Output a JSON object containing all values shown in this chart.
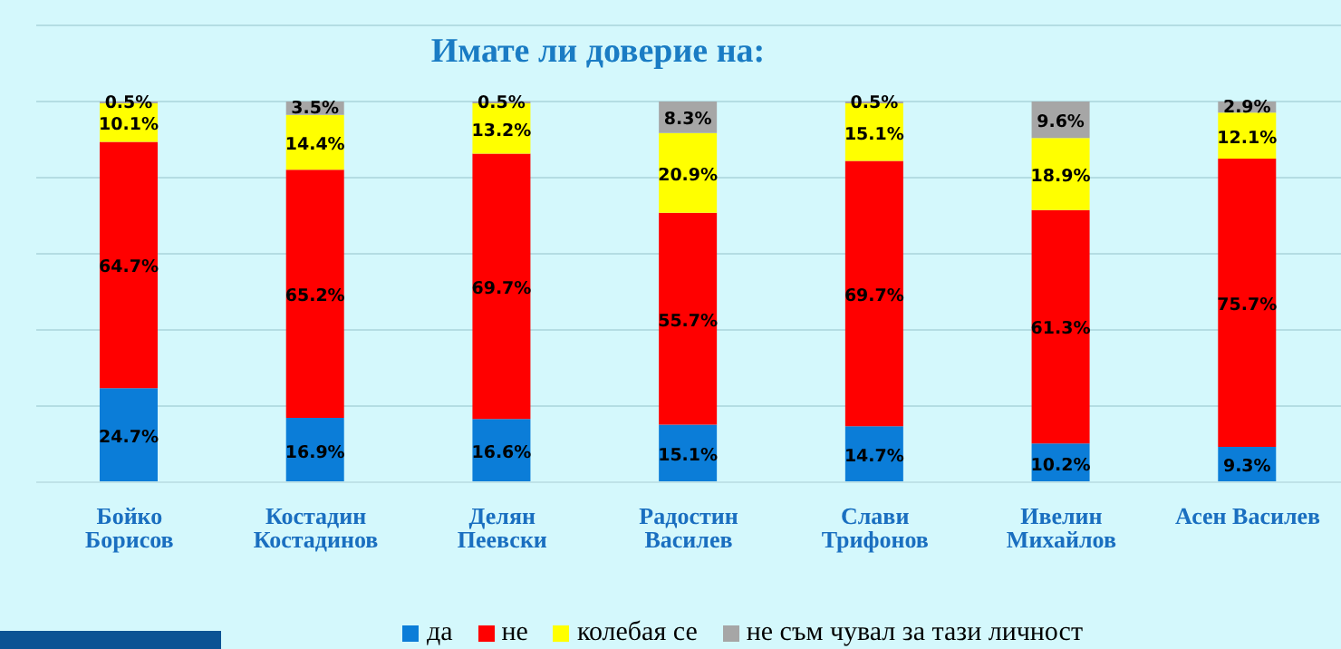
{
  "chart_data": {
    "type": "bar",
    "stacked": true,
    "title": "Имате  ли доверие на:",
    "categories": [
      "Бойко Борисов",
      "Костадин Костадинов",
      "Делян Пеевски",
      "Радостин Василев",
      "Слави Трифонов",
      "Ивелин Михайлов",
      "Асен Василев"
    ],
    "series": [
      {
        "name": "да",
        "color": "#0b7dd8",
        "values": [
          24.7,
          16.9,
          16.6,
          15.1,
          14.7,
          10.2,
          9.3
        ],
        "value_labels": [
          "24.7%",
          "16.9%",
          "16.6%",
          "15.1%",
          "14.7%",
          "10.2%",
          "9.3%"
        ]
      },
      {
        "name": "не",
        "color": "#ff0000",
        "values": [
          64.7,
          65.2,
          69.7,
          55.7,
          69.7,
          61.3,
          75.7
        ],
        "value_labels": [
          "64.7%",
          "65.2%",
          "69.7%",
          "55.7%",
          "69.7%",
          "61.3%",
          "75.7%"
        ]
      },
      {
        "name": "колебая се",
        "color": "#ffff00",
        "values": [
          10.1,
          14.4,
          13.2,
          20.9,
          15.1,
          18.9,
          12.1
        ],
        "value_labels": [
          "10.1%",
          "14.4%",
          "13.2%",
          "20.9%",
          "15.1%",
          "18.9%",
          "12.1%"
        ]
      },
      {
        "name": "не съм чувал за тази личност",
        "color": "#a6a6a6",
        "values": [
          0.5,
          3.5,
          0.5,
          8.3,
          0.5,
          9.6,
          2.9
        ],
        "value_labels": [
          "0.5%",
          "3.5%",
          "0.5%",
          "8.3%",
          "0.5%",
          "9.6%",
          "2.9%"
        ]
      }
    ],
    "ylim": [
      0,
      120
    ],
    "yticks": [
      0,
      20,
      40,
      60,
      80,
      100,
      120
    ],
    "grid": "y",
    "tick_labels": "x",
    "legend": "bottom"
  }
}
